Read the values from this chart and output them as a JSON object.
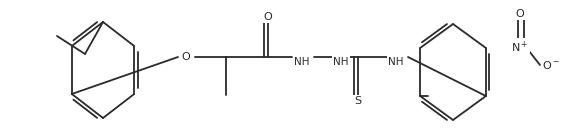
{
  "bg_color": "#ffffff",
  "line_color": "#2a2a2a",
  "line_width": 1.3,
  "font_size": 7.5,
  "figsize": [
    5.7,
    1.34
  ],
  "dpi": 100,
  "xlim": [
    0,
    570
  ],
  "ylim": [
    0,
    134
  ]
}
